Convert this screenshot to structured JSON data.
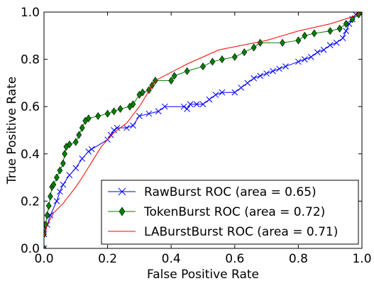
{
  "chart_data": {
    "type": "line",
    "title": "",
    "xlabel": "False Positive Rate",
    "ylabel": "True Positive Rate",
    "xlim": [
      0,
      1
    ],
    "ylim": [
      0,
      1
    ],
    "xticks": [
      "0.0",
      "0.2",
      "0.4",
      "0.6",
      "0.8",
      "1.0"
    ],
    "yticks": [
      "0.0",
      "0.2",
      "0.4",
      "0.6",
      "0.8",
      "1.0"
    ],
    "grid": false,
    "legend_position": "lower-right",
    "series": [
      {
        "name": "RawBurst ROC (area = 0.65)",
        "color": "#0000ff",
        "marker": "x",
        "points": [
          [
            0,
            0
          ],
          [
            0,
            0.06
          ],
          [
            0.01,
            0.1
          ],
          [
            0.02,
            0.14
          ],
          [
            0.04,
            0.2
          ],
          [
            0.05,
            0.24
          ],
          [
            0.06,
            0.27
          ],
          [
            0.08,
            0.31
          ],
          [
            0.1,
            0.34
          ],
          [
            0.12,
            0.38
          ],
          [
            0.14,
            0.41
          ],
          [
            0.15,
            0.42
          ],
          [
            0.2,
            0.46
          ],
          [
            0.21,
            0.48
          ],
          [
            0.22,
            0.5
          ],
          [
            0.23,
            0.51
          ],
          [
            0.26,
            0.51
          ],
          [
            0.28,
            0.52
          ],
          [
            0.3,
            0.56
          ],
          [
            0.33,
            0.57
          ],
          [
            0.36,
            0.58
          ],
          [
            0.38,
            0.6
          ],
          [
            0.44,
            0.6
          ],
          [
            0.45,
            0.59
          ],
          [
            0.46,
            0.61
          ],
          [
            0.48,
            0.61
          ],
          [
            0.5,
            0.61
          ],
          [
            0.52,
            0.63
          ],
          [
            0.54,
            0.65
          ],
          [
            0.56,
            0.66
          ],
          [
            0.6,
            0.66
          ],
          [
            0.62,
            0.68
          ],
          [
            0.64,
            0.7
          ],
          [
            0.66,
            0.72
          ],
          [
            0.68,
            0.73
          ],
          [
            0.7,
            0.74
          ],
          [
            0.72,
            0.75
          ],
          [
            0.74,
            0.76
          ],
          [
            0.76,
            0.77
          ],
          [
            0.8,
            0.79
          ],
          [
            0.82,
            0.8
          ],
          [
            0.84,
            0.81
          ],
          [
            0.86,
            0.83
          ],
          [
            0.88,
            0.84
          ],
          [
            0.9,
            0.86
          ],
          [
            0.92,
            0.87
          ],
          [
            0.94,
            0.89
          ],
          [
            0.95,
            0.92
          ],
          [
            0.96,
            0.95
          ],
          [
            0.97,
            0.97
          ],
          [
            0.98,
            0.99
          ],
          [
            1,
            1
          ]
        ]
      },
      {
        "name": "TokenBurst ROC (area = 0.72)",
        "color": "#008000",
        "marker": "diamond",
        "points": [
          [
            0,
            0
          ],
          [
            0,
            0.06
          ],
          [
            0.005,
            0.1
          ],
          [
            0.01,
            0.14
          ],
          [
            0.015,
            0.18
          ],
          [
            0.02,
            0.22
          ],
          [
            0.025,
            0.26
          ],
          [
            0.03,
            0.27
          ],
          [
            0.04,
            0.3
          ],
          [
            0.05,
            0.33
          ],
          [
            0.06,
            0.36
          ],
          [
            0.065,
            0.4
          ],
          [
            0.07,
            0.43
          ],
          [
            0.08,
            0.44
          ],
          [
            0.1,
            0.45
          ],
          [
            0.11,
            0.48
          ],
          [
            0.12,
            0.51
          ],
          [
            0.13,
            0.54
          ],
          [
            0.14,
            0.55
          ],
          [
            0.17,
            0.56
          ],
          [
            0.2,
            0.57
          ],
          [
            0.22,
            0.58
          ],
          [
            0.24,
            0.59
          ],
          [
            0.27,
            0.6
          ],
          [
            0.28,
            0.61
          ],
          [
            0.3,
            0.65
          ],
          [
            0.31,
            0.66
          ],
          [
            0.33,
            0.67
          ],
          [
            0.34,
            0.69
          ],
          [
            0.35,
            0.71
          ],
          [
            0.4,
            0.71
          ],
          [
            0.41,
            0.73
          ],
          [
            0.45,
            0.75
          ],
          [
            0.5,
            0.77
          ],
          [
            0.53,
            0.79
          ],
          [
            0.56,
            0.8
          ],
          [
            0.6,
            0.81
          ],
          [
            0.63,
            0.83
          ],
          [
            0.66,
            0.85
          ],
          [
            0.68,
            0.87
          ],
          [
            0.75,
            0.87
          ],
          [
            0.8,
            0.88
          ],
          [
            0.82,
            0.9
          ],
          [
            0.85,
            0.91
          ],
          [
            0.9,
            0.92
          ],
          [
            0.93,
            0.93
          ],
          [
            0.95,
            0.95
          ],
          [
            0.97,
            0.97
          ],
          [
            0.99,
            0.99
          ],
          [
            1,
            1
          ]
        ]
      },
      {
        "name": "LABurstBurst ROC (area = 0.71)",
        "color": "#ff0000",
        "marker": "none",
        "points": [
          [
            0,
            0
          ],
          [
            0,
            0.05
          ],
          [
            0.005,
            0.07
          ],
          [
            0.01,
            0.1
          ],
          [
            0.03,
            0.15
          ],
          [
            0.06,
            0.19
          ],
          [
            0.1,
            0.26
          ],
          [
            0.12,
            0.3
          ],
          [
            0.18,
            0.43
          ],
          [
            0.22,
            0.49
          ],
          [
            0.26,
            0.53
          ],
          [
            0.3,
            0.6
          ],
          [
            0.35,
            0.71
          ],
          [
            0.45,
            0.78
          ],
          [
            0.55,
            0.84
          ],
          [
            0.7,
            0.88
          ],
          [
            0.8,
            0.92
          ],
          [
            0.9,
            0.95
          ],
          [
            0.97,
            0.98
          ],
          [
            1,
            1
          ]
        ]
      }
    ]
  }
}
